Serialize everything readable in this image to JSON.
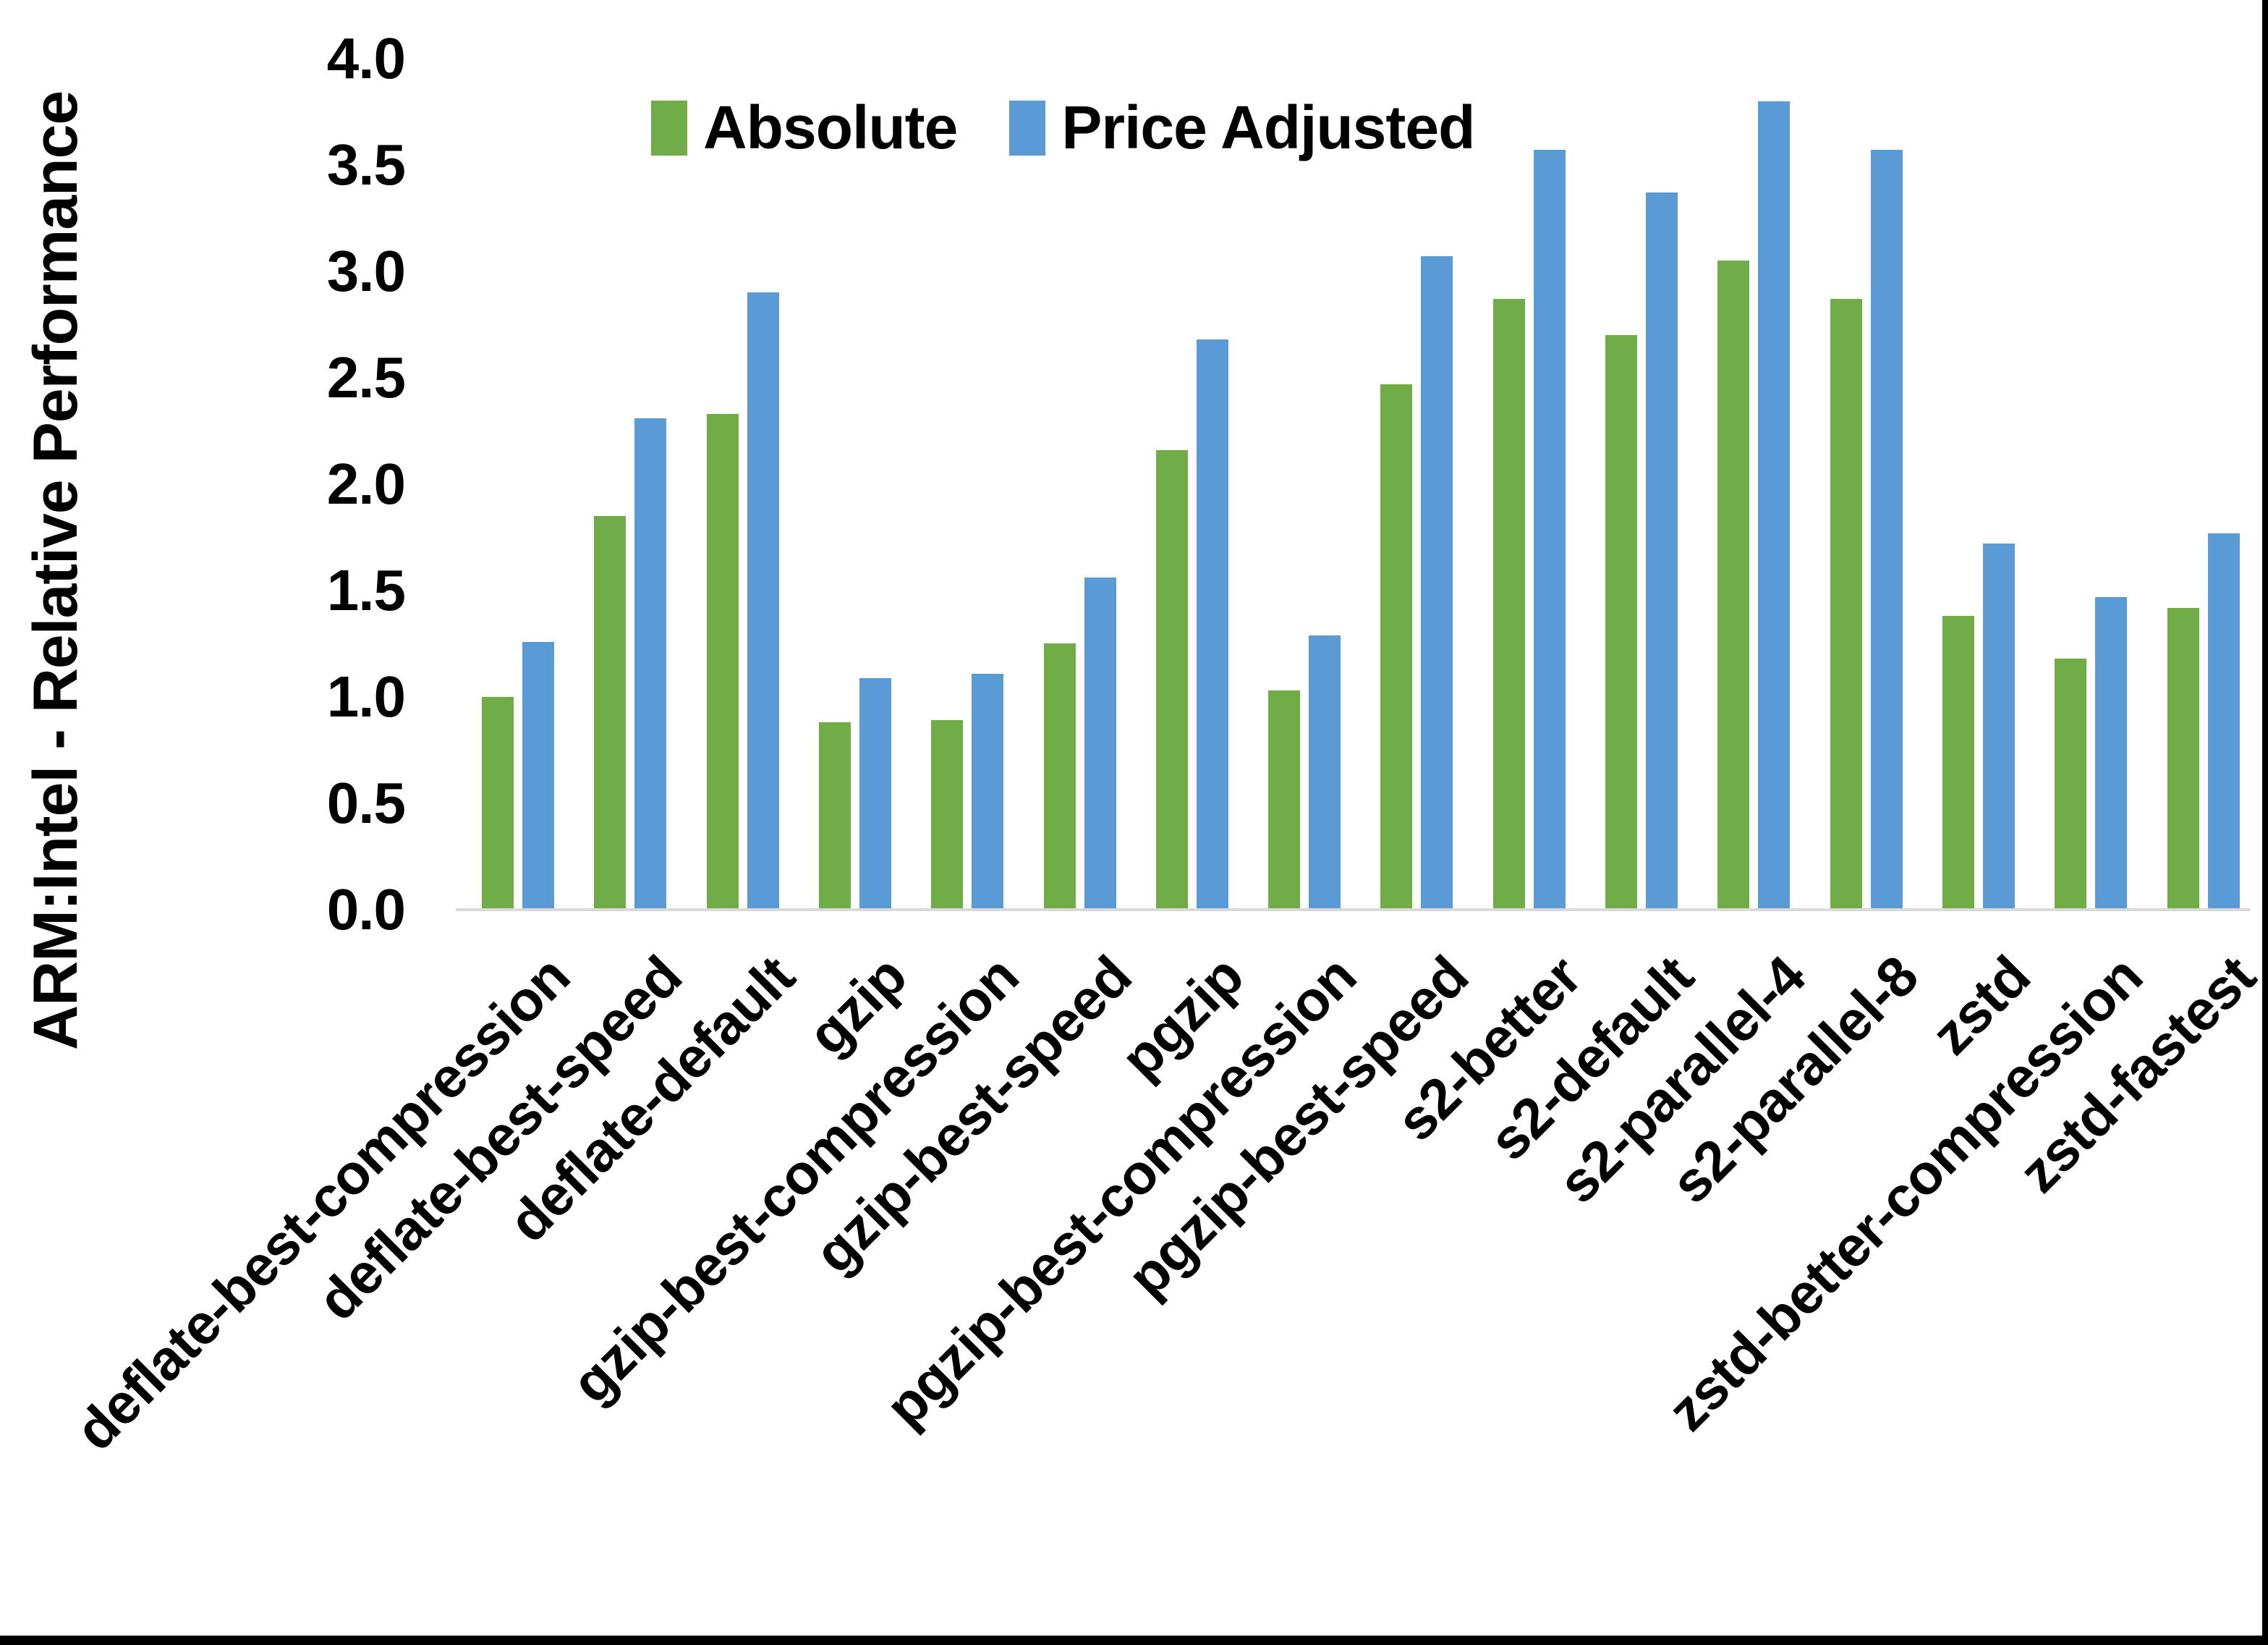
{
  "chart_data": {
    "type": "bar",
    "title": "",
    "xlabel": "",
    "ylabel": "ARM:Intel - Relative Performance",
    "ylim": [
      0,
      4
    ],
    "yticks": [
      "0.0",
      "0.5",
      "1.0",
      "1.5",
      "2.0",
      "2.5",
      "3.0",
      "3.5",
      "4.0"
    ],
    "grid": false,
    "legend_position": "top",
    "categories": [
      "deflate-best-compression",
      "deflate-best-speed",
      "deflate-default",
      "gzip",
      "gzip-best-compression",
      "gzip-best-speed",
      "pgzip",
      "pgzip-best-compression",
      "pgzip-best-speed",
      "s2-better",
      "s2-default",
      "s2-parallel-4",
      "s2-parallel-8",
      "zstd",
      "zstd-better-compression",
      "zstd-fastest"
    ],
    "series": [
      {
        "name": "Absolute",
        "color": "#70AD47",
        "values": [
          1.0,
          1.85,
          2.33,
          0.88,
          0.89,
          1.25,
          2.16,
          1.03,
          2.47,
          2.87,
          2.7,
          3.05,
          2.87,
          1.38,
          1.18,
          1.42
        ]
      },
      {
        "name": "Price Adjusted",
        "color": "#5B9BD5",
        "values": [
          1.26,
          2.31,
          2.9,
          1.09,
          1.11,
          1.56,
          2.68,
          1.29,
          3.07,
          3.57,
          3.37,
          3.8,
          3.57,
          1.72,
          1.47,
          1.77
        ]
      }
    ],
    "colors": {
      "axis_line": "#D9D9D9",
      "text": "#000000",
      "background": "#FFFFFF",
      "border": "#000000"
    }
  }
}
